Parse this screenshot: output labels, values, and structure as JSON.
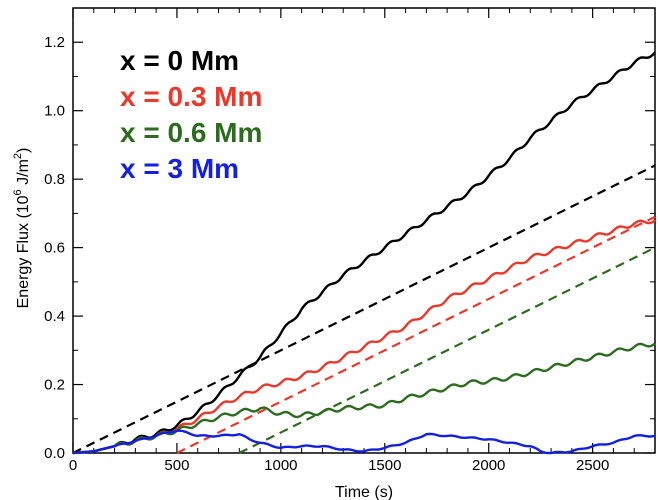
{
  "chart_data": {
    "type": "line",
    "xlabel": "Time (s)",
    "ylabel_main": "Energy Flux (10",
    "ylabel_sup": "6",
    "ylabel_unit": " J/m",
    "ylabel_unit_sup": "2",
    "ylabel_close": ")",
    "xlim": [
      0,
      2800
    ],
    "ylim": [
      0,
      1.3
    ],
    "xticks": [
      0,
      500,
      1000,
      1500,
      2000,
      2500
    ],
    "xtick_labels": [
      "0",
      "500",
      "1000",
      "1500",
      "2000",
      "2500"
    ],
    "yticks": [
      0,
      0.2,
      0.4,
      0.6,
      0.8,
      1.0,
      1.2
    ],
    "ytick_labels": [
      "0.0",
      "0.2",
      "0.4",
      "0.6",
      "0.8",
      "1.0",
      "1.2"
    ],
    "legend_position": "top-left",
    "grid": false,
    "series": [
      {
        "name": "x = 0 Mm",
        "color": "#000000",
        "points": [
          [
            0,
            0
          ],
          [
            100,
            0.005
          ],
          [
            200,
            0.02
          ],
          [
            300,
            0.04
          ],
          [
            400,
            0.055
          ],
          [
            500,
            0.08
          ],
          [
            600,
            0.12
          ],
          [
            700,
            0.17
          ],
          [
            800,
            0.225
          ],
          [
            900,
            0.28
          ],
          [
            1000,
            0.35
          ],
          [
            1100,
            0.42
          ],
          [
            1200,
            0.47
          ],
          [
            1300,
            0.52
          ],
          [
            1400,
            0.56
          ],
          [
            1500,
            0.6
          ],
          [
            1600,
            0.64
          ],
          [
            1700,
            0.68
          ],
          [
            1800,
            0.72
          ],
          [
            1900,
            0.76
          ],
          [
            2000,
            0.81
          ],
          [
            2100,
            0.86
          ],
          [
            2200,
            0.92
          ],
          [
            2300,
            0.97
          ],
          [
            2400,
            1.02
          ],
          [
            2500,
            1.06
          ],
          [
            2600,
            1.1
          ],
          [
            2700,
            1.14
          ],
          [
            2800,
            1.17
          ]
        ]
      },
      {
        "name": "x = 0.3 Mm",
        "color": "#e8392c",
        "points": [
          [
            0,
            0
          ],
          [
            100,
            0.005
          ],
          [
            200,
            0.02
          ],
          [
            300,
            0.035
          ],
          [
            400,
            0.05
          ],
          [
            500,
            0.07
          ],
          [
            600,
            0.1
          ],
          [
            700,
            0.135
          ],
          [
            800,
            0.165
          ],
          [
            900,
            0.19
          ],
          [
            1000,
            0.205
          ],
          [
            1100,
            0.225
          ],
          [
            1200,
            0.25
          ],
          [
            1300,
            0.28
          ],
          [
            1400,
            0.31
          ],
          [
            1500,
            0.34
          ],
          [
            1600,
            0.37
          ],
          [
            1700,
            0.41
          ],
          [
            1800,
            0.45
          ],
          [
            1900,
            0.48
          ],
          [
            2000,
            0.51
          ],
          [
            2100,
            0.54
          ],
          [
            2200,
            0.57
          ],
          [
            2300,
            0.59
          ],
          [
            2400,
            0.61
          ],
          [
            2500,
            0.63
          ],
          [
            2600,
            0.65
          ],
          [
            2700,
            0.67
          ],
          [
            2800,
            0.68
          ]
        ]
      },
      {
        "name": "x = 0.6 Mm",
        "color": "#2d6b1f",
        "points": [
          [
            0,
            0
          ],
          [
            100,
            0.005
          ],
          [
            200,
            0.02
          ],
          [
            300,
            0.035
          ],
          [
            400,
            0.05
          ],
          [
            500,
            0.065
          ],
          [
            600,
            0.085
          ],
          [
            700,
            0.105
          ],
          [
            800,
            0.12
          ],
          [
            900,
            0.13
          ],
          [
            1000,
            0.115
          ],
          [
            1100,
            0.11
          ],
          [
            1200,
            0.12
          ],
          [
            1300,
            0.13
          ],
          [
            1400,
            0.135
          ],
          [
            1500,
            0.14
          ],
          [
            1600,
            0.16
          ],
          [
            1700,
            0.175
          ],
          [
            1800,
            0.19
          ],
          [
            1900,
            0.205
          ],
          [
            2000,
            0.21
          ],
          [
            2100,
            0.22
          ],
          [
            2200,
            0.235
          ],
          [
            2300,
            0.25
          ],
          [
            2400,
            0.265
          ],
          [
            2500,
            0.28
          ],
          [
            2600,
            0.295
          ],
          [
            2700,
            0.31
          ],
          [
            2800,
            0.32
          ]
        ]
      },
      {
        "name": "x = 3 Mm",
        "color": "#1420e0",
        "points": [
          [
            0,
            0
          ],
          [
            100,
            0.005
          ],
          [
            200,
            0.02
          ],
          [
            300,
            0.035
          ],
          [
            400,
            0.05
          ],
          [
            450,
            0.06
          ],
          [
            500,
            0.065
          ],
          [
            550,
            0.06
          ],
          [
            600,
            0.05
          ],
          [
            700,
            0.05
          ],
          [
            800,
            0.055
          ],
          [
            850,
            0.04
          ],
          [
            900,
            0.03
          ],
          [
            1000,
            0.015
          ],
          [
            1100,
            0.02
          ],
          [
            1200,
            0.02
          ],
          [
            1300,
            0.01
          ],
          [
            1400,
            0.005
          ],
          [
            1500,
            0.015
          ],
          [
            1600,
            0.03
          ],
          [
            1700,
            0.055
          ],
          [
            1800,
            0.05
          ],
          [
            1900,
            0.045
          ],
          [
            2000,
            0.04
          ],
          [
            2100,
            0.03
          ],
          [
            2200,
            0.02
          ],
          [
            2250,
            0.005
          ],
          [
            2300,
            0.0
          ],
          [
            2400,
            0.005
          ],
          [
            2500,
            0.02
          ],
          [
            2600,
            0.03
          ],
          [
            2700,
            0.05
          ],
          [
            2800,
            0.05
          ]
        ]
      }
    ],
    "dashed_lines": [
      {
        "color": "#000000",
        "points": [
          [
            0,
            0.0
          ],
          [
            2800,
            0.84
          ]
        ]
      },
      {
        "color": "#e8392c",
        "points": [
          [
            500,
            0.0
          ],
          [
            2800,
            0.69
          ]
        ]
      },
      {
        "color": "#2d6b1f",
        "points": [
          [
            800,
            0.0
          ],
          [
            2800,
            0.6
          ]
        ]
      }
    ]
  }
}
